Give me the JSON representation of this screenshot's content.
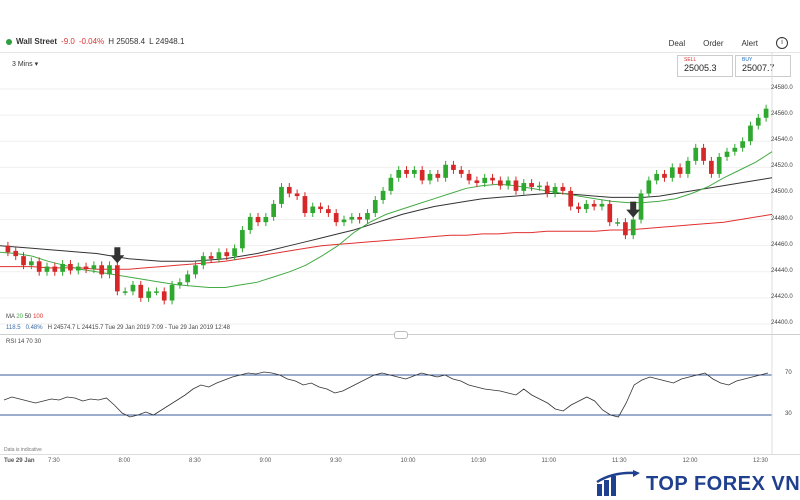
{
  "header": {
    "instrument": "Wall Street",
    "change": "-9.0",
    "change_pct": "-0.04%",
    "high": "H 25058.4",
    "low": "L 24948.1",
    "nav": [
      "Deal",
      "Order",
      "Alert"
    ]
  },
  "interval": "3 Mins",
  "quotes": {
    "sell_label": "SELL",
    "sell_price": "25005.3",
    "buy_label": "BUY",
    "buy_price": "25007.7"
  },
  "price_axis": [
    "24580.0",
    "24560.0",
    "24540.0",
    "24520.0",
    "24500.0",
    "24480.0",
    "24460.0",
    "24440.0",
    "24420.0",
    "24400.0"
  ],
  "ma_legend": {
    "label": "MA",
    "p1": "20",
    "p2": "50",
    "p3": "100"
  },
  "status_line": {
    "v1": "118.5",
    "v2": "0.48%",
    "high": "H 24574.7",
    "low": "L 24415.7",
    "range": "Tue 29 Jan 2019 7:09 - Tue 29 Jan 2019 12:48"
  },
  "rsi_legend": {
    "label": "RSI",
    "p1": "14",
    "p2": "70",
    "p3": "30"
  },
  "rsi_axis": [
    "70",
    "30"
  ],
  "footer": {
    "note": "Data is indicative",
    "date": "Tue 29 Jan"
  },
  "time_axis": [
    "7:30",
    "8:00",
    "8:30",
    "9:00",
    "9:30",
    "10:00",
    "10:30",
    "11:00",
    "11:30",
    "12:00",
    "12:30"
  ],
  "logo": {
    "text": "TOP FOREX VN"
  },
  "colors": {
    "up": "#2ea82e",
    "down": "#d62828",
    "ma20": "#44aa44",
    "ma50": "#333333",
    "ma100": "#e03030",
    "rsi_line": "#333333",
    "rsi_band": "#3a5a99",
    "logo": "#1f3f8f"
  },
  "chart_data": {
    "type": "candlestick",
    "interval": "3 Mins",
    "ylim": [
      24400,
      24590
    ],
    "candles": [
      [
        24460,
        24455
      ],
      [
        24456,
        24452
      ],
      [
        24452,
        24445
      ],
      [
        24445,
        24448
      ],
      [
        24448,
        24440
      ],
      [
        24440,
        24444
      ],
      [
        24444,
        24440
      ],
      [
        24440,
        24446
      ],
      [
        24446,
        24441
      ],
      [
        24441,
        24444
      ],
      [
        24444,
        24442
      ],
      [
        24442,
        24445
      ],
      [
        24445,
        24438
      ],
      [
        24438,
        24445
      ],
      [
        24445,
        24425
      ],
      [
        24425,
        24425
      ],
      [
        24425,
        24430
      ],
      [
        24430,
        24420
      ],
      [
        24420,
        24425
      ],
      [
        24425,
        24425
      ],
      [
        24425,
        24418
      ],
      [
        24418,
        24430
      ],
      [
        24430,
        24432
      ],
      [
        24432,
        24438
      ],
      [
        24438,
        24445
      ],
      [
        24445,
        24452
      ],
      [
        24452,
        24450
      ],
      [
        24450,
        24455
      ],
      [
        24455,
        24452
      ],
      [
        24452,
        24458
      ],
      [
        24458,
        24472
      ],
      [
        24472,
        24482
      ],
      [
        24482,
        24478
      ],
      [
        24478,
        24482
      ],
      [
        24482,
        24492
      ],
      [
        24492,
        24505
      ],
      [
        24505,
        24500
      ],
      [
        24500,
        24498
      ],
      [
        24498,
        24485
      ],
      [
        24485,
        24490
      ],
      [
        24490,
        24488
      ],
      [
        24488,
        24485
      ],
      [
        24485,
        24478
      ],
      [
        24478,
        24480
      ],
      [
        24480,
        24482
      ],
      [
        24482,
        24480
      ],
      [
        24480,
        24485
      ],
      [
        24485,
        24495
      ],
      [
        24495,
        24502
      ],
      [
        24502,
        24512
      ],
      [
        24512,
        24518
      ],
      [
        24518,
        24515
      ],
      [
        24515,
        24518
      ],
      [
        24518,
        24510
      ],
      [
        24510,
        24515
      ],
      [
        24515,
        24512
      ],
      [
        24512,
        24522
      ],
      [
        24522,
        24518
      ],
      [
        24518,
        24515
      ],
      [
        24515,
        24510
      ],
      [
        24510,
        24508
      ],
      [
        24508,
        24512
      ],
      [
        24512,
        24510
      ],
      [
        24510,
        24506
      ],
      [
        24506,
        24510
      ],
      [
        24510,
        24502
      ],
      [
        24502,
        24508
      ],
      [
        24508,
        24505
      ],
      [
        24505,
        24506
      ],
      [
        24506,
        24500
      ],
      [
        24500,
        24505
      ],
      [
        24505,
        24502
      ],
      [
        24502,
        24490
      ],
      [
        24490,
        24488
      ],
      [
        24488,
        24492
      ],
      [
        24492,
        24490
      ],
      [
        24490,
        24492
      ],
      [
        24492,
        24478
      ],
      [
        24478,
        24478
      ],
      [
        24478,
        24468
      ],
      [
        24468,
        24480
      ],
      [
        24480,
        24500
      ],
      [
        24500,
        24510
      ],
      [
        24510,
        24515
      ],
      [
        24515,
        24512
      ],
      [
        24512,
        24520
      ],
      [
        24520,
        24515
      ],
      [
        24515,
        24525
      ],
      [
        24525,
        24535
      ],
      [
        24535,
        24525
      ],
      [
        24525,
        24515
      ],
      [
        24515,
        24528
      ],
      [
        24528,
        24532
      ],
      [
        24532,
        24535
      ],
      [
        24535,
        24540
      ],
      [
        24540,
        24552
      ],
      [
        24552,
        24558
      ],
      [
        24558,
        24565
      ]
    ],
    "ma20": [
      24455,
      24454,
      24452,
      24448,
      24445,
      24442,
      24440,
      24438,
      24436,
      24434,
      24432,
      24430,
      24429,
      24428,
      24428,
      24430,
      24432,
      24436,
      24440,
      24445,
      24452,
      24460,
      24470,
      24478,
      24484,
      24488,
      24492,
      24496,
      24500,
      24504,
      24506,
      24507,
      24506,
      24504,
      24502,
      24500,
      24498,
      24496,
      24494,
      24493,
      24493,
      24494,
      24496,
      24500,
      24505,
      24512,
      24518,
      24524,
      24532
    ],
    "ma50": [
      24460,
      24459,
      24458,
      24457,
      24456,
      24455,
      24454,
      24452,
      24450,
      24449,
      24448,
      24448,
      24448,
      24449,
      24450,
      24452,
      24454,
      24457,
      24460,
      24463,
      24466,
      24469,
      24472,
      24476,
      24480,
      24484,
      24487,
      24490,
      24492,
      24494,
      24496,
      24497,
      24498,
      24499,
      24500,
      24500,
      24499,
      24498,
      24497,
      24497,
      24497,
      24498,
      24500,
      24502,
      24504,
      24506,
      24508,
      24510,
      24512
    ],
    "ma100": [
      24444,
      24444,
      24444,
      24443,
      24443,
      24443,
      24442,
      24442,
      24442,
      24443,
      24444,
      24445,
      24446,
      24447,
      24448,
      24450,
      24452,
      24454,
      24456,
      24458,
      24460,
      24461,
      24462,
      24463,
      24464,
      24465,
      24466,
      24467,
      24468,
      24468,
      24469,
      24469,
      24470,
      24470,
      24471,
      24471,
      24471,
      24471,
      24472,
      24472,
      24473,
      24474,
      24475,
      24476,
      24477,
      24478,
      24480,
      24482,
      24484
    ],
    "sell_arrows_at": [
      14,
      80
    ],
    "rsi": {
      "ylim": [
        0,
        100
      ],
      "levels": [
        70,
        30
      ],
      "values": [
        45,
        48,
        46,
        44,
        42,
        44,
        46,
        45,
        48,
        47,
        44,
        46,
        45,
        47,
        40,
        32,
        28,
        30,
        33,
        30,
        35,
        40,
        45,
        50,
        56,
        60,
        58,
        62,
        65,
        68,
        70,
        72,
        71,
        73,
        72,
        70,
        66,
        64,
        60,
        62,
        58,
        56,
        52,
        54,
        58,
        62,
        66,
        70,
        72,
        70,
        68,
        66,
        69,
        72,
        70,
        68,
        70,
        66,
        64,
        60,
        58,
        56,
        55,
        54,
        52,
        50,
        56,
        50,
        46,
        42,
        36,
        34,
        40,
        44,
        48,
        44,
        35,
        30,
        28,
        42,
        60,
        65,
        68,
        66,
        64,
        62,
        66,
        68,
        70,
        72,
        66,
        62,
        60,
        64,
        66,
        68,
        70,
        72
      ]
    }
  }
}
